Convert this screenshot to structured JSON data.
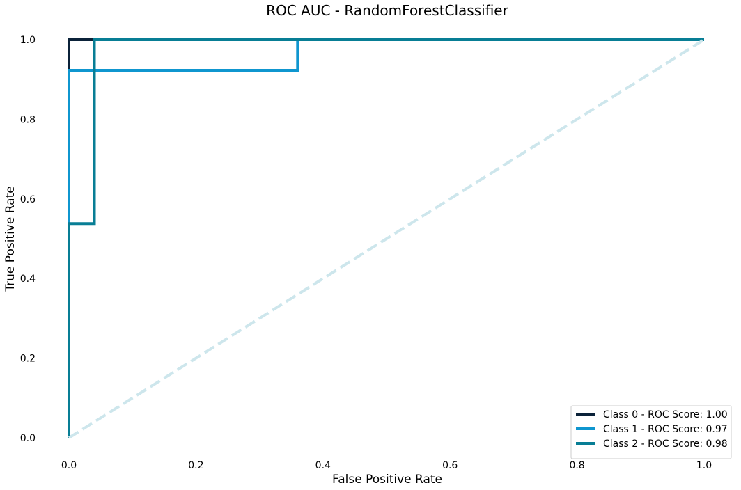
{
  "chart_data": {
    "type": "line",
    "title": "ROC AUC - RandomForestClassifier",
    "xlabel": "False Positive Rate",
    "ylabel": "True Positive Rate",
    "xlim": [
      0,
      1
    ],
    "ylim": [
      0,
      1
    ],
    "xticks": [
      0.0,
      0.2,
      0.4,
      0.6,
      0.8,
      1.0
    ],
    "xtick_labels": [
      "0.0",
      "0.2",
      "0.4",
      "0.6",
      "0.8",
      "1.0"
    ],
    "yticks": [
      0.0,
      0.2,
      0.4,
      0.6,
      0.8,
      1.0
    ],
    "ytick_labels": [
      "0.0",
      "0.2",
      "0.4",
      "0.6",
      "0.8",
      "1.0"
    ],
    "grid": false,
    "legend_position": "bottom-right",
    "series": [
      {
        "name": "Class 0 - ROC Score: 1.00",
        "color": "#0b2239",
        "x": [
          0.0,
          0.0,
          0.0,
          0.04,
          1.0
        ],
        "y": [
          0.0,
          0.93,
          1.0,
          1.0,
          1.0
        ]
      },
      {
        "name": "Class 1 - ROC Score: 0.97",
        "color": "#0f96cf",
        "x": [
          0.0,
          0.0,
          0.36,
          0.36,
          1.0
        ],
        "y": [
          0.0,
          0.923,
          0.923,
          1.0,
          1.0
        ]
      },
      {
        "name": "Class 2 - ROC Score: 0.98",
        "color": "#087e95",
        "x": [
          0.0,
          0.0,
          0.04,
          0.04,
          1.0
        ],
        "y": [
          0.0,
          0.538,
          0.538,
          1.0,
          1.0
        ]
      }
    ],
    "reference_line": {
      "x": [
        0.0,
        1.0
      ],
      "y": [
        0.0,
        1.0
      ],
      "color": "#cde6ec",
      "style": "dashed"
    }
  }
}
